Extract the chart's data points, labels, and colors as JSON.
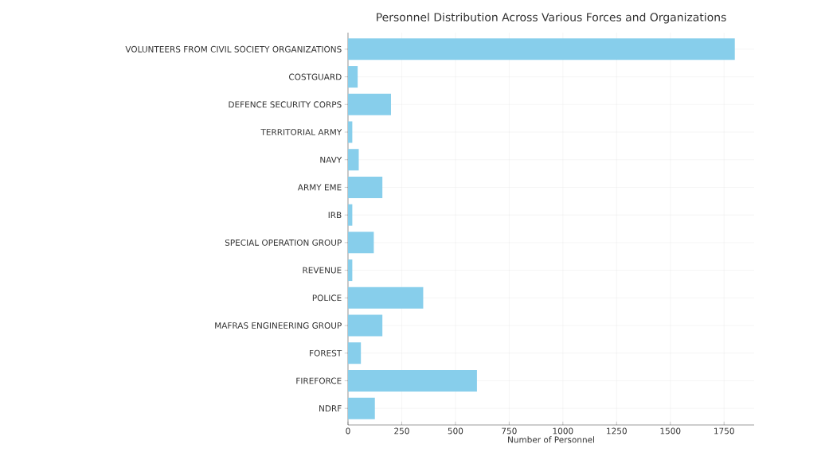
{
  "chart_data": {
    "type": "bar",
    "orientation": "horizontal",
    "title": "Personnel Distribution Across Various Forces and Organizations",
    "xlabel": "Number of Personnel",
    "categories": [
      "VOLUNTEERS FROM CIVIL SOCIETY ORGANIZATIONS",
      "COSTGUARD",
      "DEFENCE SECURITY CORPS",
      "TERRITORIAL ARMY",
      "NAVY",
      "ARMY EME",
      "IRB",
      "SPECIAL OPERATION GROUP",
      "REVENUE",
      "POLICE",
      "MAFRAS ENGINEERING GROUP",
      "FOREST",
      "FIREFORCE",
      "NDRF"
    ],
    "values": [
      1800,
      45,
      200,
      20,
      50,
      160,
      20,
      120,
      20,
      350,
      160,
      60,
      600,
      125
    ],
    "color": "#87ceeb",
    "xlim": [
      0,
      1890
    ],
    "xticks": [
      0,
      250,
      500,
      750,
      1000,
      1250,
      1500,
      1750
    ],
    "grid": true
  }
}
